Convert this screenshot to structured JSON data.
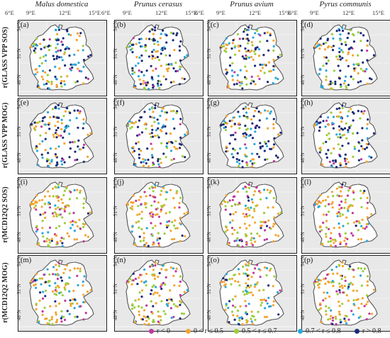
{
  "species": [
    "Malus domestica",
    "Prunus cerasus",
    "Prunus avium",
    "Pyrus communis"
  ],
  "x_ticks": [
    "6°E",
    "9°E",
    "12°E",
    "15°E"
  ],
  "y_ticks": [
    "54°N",
    "51°N",
    "48°N"
  ],
  "rows": [
    {
      "label": "r(GLASS VPP SOS)",
      "panels": [
        "(a)",
        "(b)",
        "(c)",
        "(d)"
      ],
      "mix": "vpp_sos"
    },
    {
      "label": "r(GLASS VPP MOG)",
      "panels": [
        "(e)",
        "(f)",
        "(g)",
        "(h)"
      ],
      "mix": "vpp_mog"
    },
    {
      "label": "r(MCD12Q2 SOS)",
      "panels": [
        "(i)",
        "(j)",
        "(k)",
        "(l)"
      ],
      "mix": "mcd_sos"
    },
    {
      "label": "r(MCD12Q2 MOG)",
      "panels": [
        "(m)",
        "(n)",
        "(o)",
        "(p)"
      ],
      "mix": "mcd_mog"
    }
  ],
  "legend": [
    {
      "label": "r < 0",
      "color": "#c0399e"
    },
    {
      "label": "0 < r ≤ 0.5",
      "color": "#f3a531"
    },
    {
      "label": "0.5 < r ≤ 0.7",
      "color": "#9ccd3a"
    },
    {
      "label": "0.7 < r ≤ 0.8",
      "color": "#2ba7d8"
    },
    {
      "label": "r > 0.8",
      "color": "#1b2a78"
    }
  ],
  "colors": {
    "land": "#ffffff",
    "sea": "#e8e8e8",
    "border": "#555555",
    "frame": "#222222"
  }
}
